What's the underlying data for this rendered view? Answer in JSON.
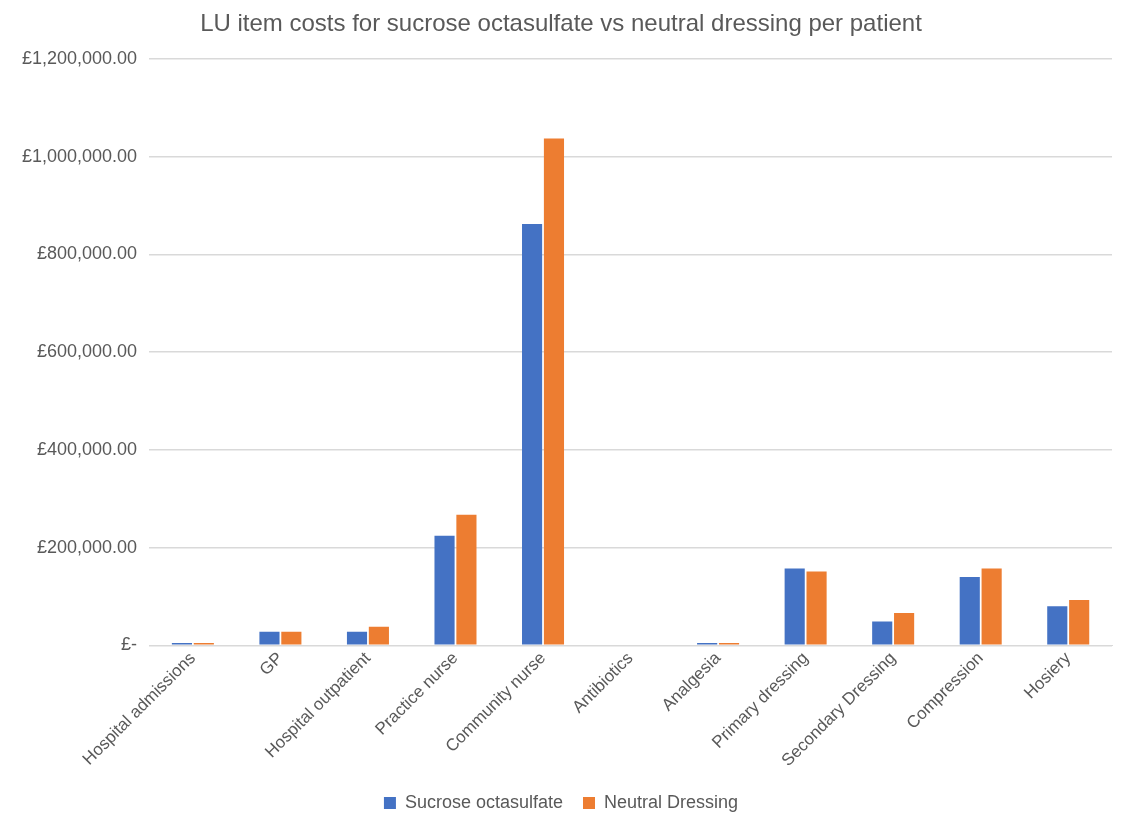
{
  "chart_data": {
    "type": "bar",
    "title": "LU item costs for sucrose octasulfate vs neutral dressing per patient",
    "categories": [
      "Hospital admissions",
      "GP",
      "Hospital outpatient",
      "Practice nurse",
      "Community nurse",
      "Antibiotics",
      "Analgesia",
      "Primary dressing",
      "Secondary Dressing",
      "Compression",
      "Hosiery"
    ],
    "series": [
      {
        "name": "Sucrose octasulfate",
        "color": "#4472c4",
        "values": [
          5000,
          28000,
          28000,
          224000,
          862000,
          null,
          5000,
          157000,
          49000,
          140000,
          80000
        ]
      },
      {
        "name": "Neutral Dressing",
        "color": "#ed7d31",
        "values": [
          5000,
          28000,
          38000,
          267000,
          1037000,
          null,
          5000,
          151000,
          66000,
          157000,
          93000
        ]
      }
    ],
    "ylim": [
      0,
      1200000
    ],
    "yticks": [
      {
        "value": 0,
        "label": "£-"
      },
      {
        "value": 200000,
        "label": "£200,000.00"
      },
      {
        "value": 400000,
        "label": "£400,000.00"
      },
      {
        "value": 600000,
        "label": "£600,000.00"
      },
      {
        "value": 800000,
        "label": "£800,000.00"
      },
      {
        "value": 1000000,
        "label": "£1,000,000.00"
      },
      {
        "value": 1200000,
        "label": "£1,200,000.00"
      }
    ],
    "grid": "y",
    "legend": "bottom"
  }
}
